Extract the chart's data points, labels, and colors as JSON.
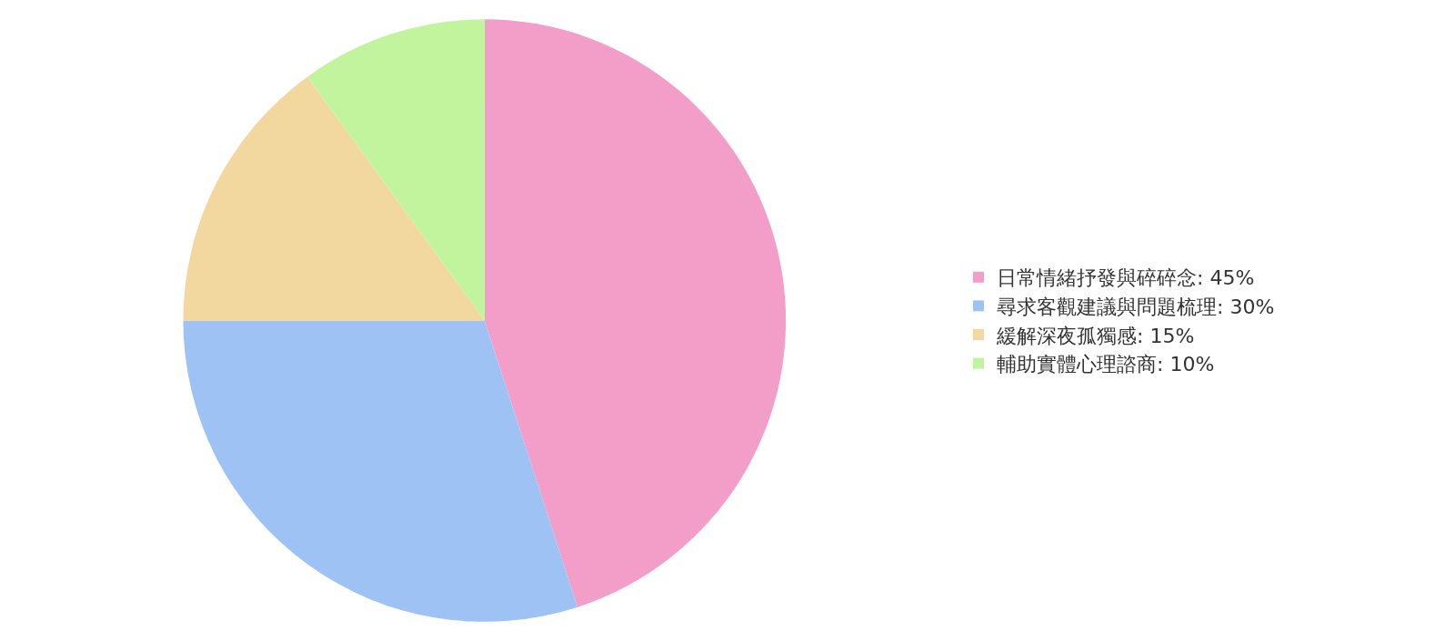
{
  "chart_data": {
    "type": "pie",
    "categories": [
      "日常情緒抒發與碎碎念: 45%",
      "尋求客觀建議與問題梳理: 30%",
      "緩解深夜孤獨感: 15%",
      "輔助實體心理諮商: 10%"
    ],
    "values": [
      45,
      30,
      15,
      10
    ],
    "colors": [
      "#f29ec8",
      "#9ec2f4",
      "#f2d89e",
      "#c2f49e"
    ],
    "legend": "right"
  }
}
